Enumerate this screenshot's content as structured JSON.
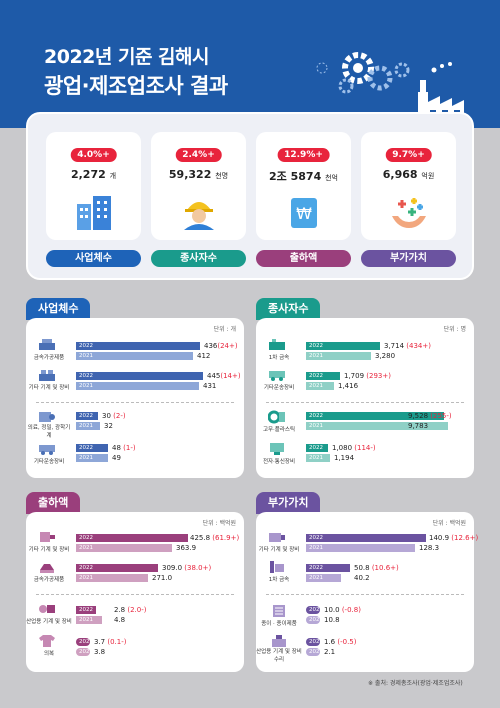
{
  "title": {
    "line1": "2022년 기준 김해시",
    "line2": "광업·제조업조사 결과"
  },
  "summary": [
    {
      "badge": "4.0%+",
      "value": "2,272",
      "unit": "개",
      "label": "사업체수",
      "color": "#1e63b8",
      "icon": "buildings-icon"
    },
    {
      "badge": "2.4%+",
      "value": "59,322",
      "unit": "천명",
      "label": "종사자수",
      "color": "#1a9b8c",
      "icon": "worker-icon"
    },
    {
      "badge": "12.9%+",
      "value": "2조 5874",
      "unit": "천억",
      "label": "출하액",
      "color": "#9a3f7c",
      "icon": "money-icon"
    },
    {
      "badge": "9.7%+",
      "value": "6,968",
      "unit": "억원",
      "label": "부가가치",
      "color": "#6b53a0",
      "icon": "hands-icon"
    }
  ],
  "panels": {
    "establishments": {
      "title": "사업체수",
      "unit": "단위 : 개",
      "rows": [
        {
          "label": "금속가공제품",
          "v2022": "436",
          "chg": "(24+)",
          "v2021": "412"
        },
        {
          "label": "기타 기계 및 장비",
          "v2022": "445",
          "chg": "(14+)",
          "v2021": "431"
        },
        {
          "label": "의료, 정밀, 광학기계",
          "v2022": "30",
          "chg": "(2-)",
          "v2021": "32"
        },
        {
          "label": "기타운송장비",
          "v2022": "48",
          "chg": "(1-)",
          "v2021": "49"
        }
      ]
    },
    "workers": {
      "title": "종사자수",
      "unit": "단위 : 명",
      "rows": [
        {
          "label": "1차 금속",
          "v2022": "3,714",
          "chg": "(434+)",
          "v2021": "3,280"
        },
        {
          "label": "기타운송장비",
          "v2022": "1,709",
          "chg": "(293+)",
          "v2021": "1,416"
        },
        {
          "label": "고무·플라스틱",
          "v2022": "9,528",
          "chg": "(255-)",
          "v2021": "9,783"
        },
        {
          "label": "전자·통신장비",
          "v2022": "1,080",
          "chg": "(114-)",
          "v2021": "1,194"
        }
      ]
    },
    "shipments": {
      "title": "출하액",
      "unit": "단위 : 백억원",
      "rows": [
        {
          "label": "기타 기계 및 장비",
          "v2022": "425.8",
          "chg": "(61.9+)",
          "v2021": "363.9"
        },
        {
          "label": "금속가공제품",
          "v2022": "309.0",
          "chg": "(38.0+)",
          "v2021": "271.0"
        },
        {
          "label": "산업용 기계 및 장비",
          "v2022": "2.8",
          "chg": "(2.0-)",
          "v2021": "4.8"
        },
        {
          "label": "의복",
          "v2022": "3.7",
          "chg": "(0.1-)",
          "v2021": "3.8"
        }
      ]
    },
    "value_added": {
      "title": "부가가치",
      "unit": "단위 : 백억원",
      "rows": [
        {
          "label": "기타 기계 및 장비",
          "v2022": "140.9",
          "chg": "(12.6+)",
          "v2021": "128.3"
        },
        {
          "label": "1차 금속",
          "v2022": "50.8",
          "chg": "(10.6+)",
          "v2021": "40.2"
        },
        {
          "label": "종이 · 종이제품",
          "v2022": "10.0",
          "chg": "(-0.8)",
          "v2021": "10.8"
        },
        {
          "label": "산업용 기계 및 장비 수리",
          "v2022": "1.6",
          "chg": "(-0.5)",
          "v2021": "2.1"
        }
      ]
    }
  },
  "year_labels": {
    "y2022": "2022",
    "y2021": "2021"
  },
  "source": "※ 출처: 경제총조사(광업·제조업조사)"
}
